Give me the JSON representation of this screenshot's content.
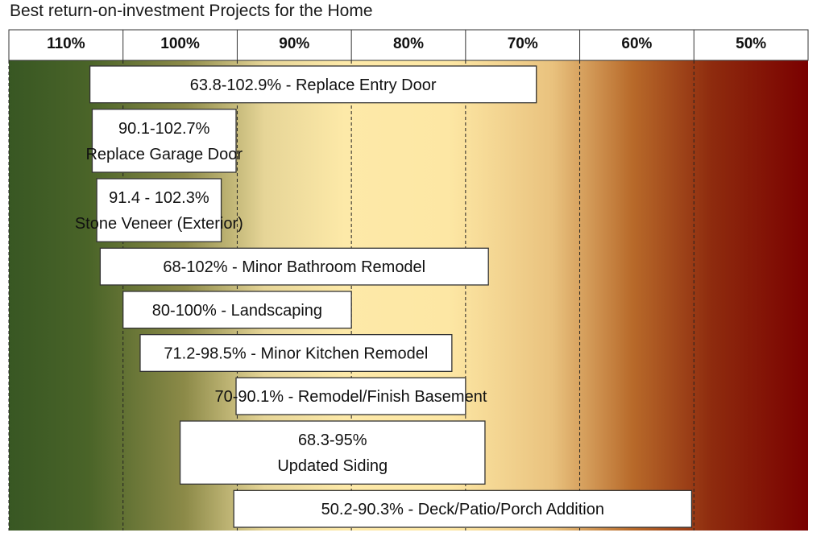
{
  "chart_data": {
    "type": "bar",
    "orientation": "horizontal-range",
    "title": "Best return-on-investment Projects for the Home",
    "xlim": [
      110,
      40
    ],
    "x_ticks": [
      110,
      100,
      90,
      80,
      70,
      60,
      50
    ],
    "tick_labels": [
      "110%",
      "100%",
      "90%",
      "80%",
      "70%",
      "60%",
      "50%"
    ],
    "grid": true,
    "background_gradient": [
      "#385723",
      "#fde9a8",
      "#7f0000"
    ],
    "bars": [
      {
        "lines": [
          "63.8-102.9% - Replace Entry Door"
        ],
        "low": 63.8,
        "high": 102.9
      },
      {
        "lines": [
          "90.1-102.7%",
          "Replace Garage Door"
        ],
        "low": 90.1,
        "high": 102.7
      },
      {
        "lines": [
          "91.4 - 102.3%",
          "Stone Veneer (Exterior)"
        ],
        "low": 91.4,
        "high": 102.3
      },
      {
        "lines": [
          "68-102% - Minor Bathroom Remodel"
        ],
        "low": 68,
        "high": 102
      },
      {
        "lines": [
          "80-100% - Landscaping"
        ],
        "low": 80,
        "high": 100
      },
      {
        "lines": [
          "71.2-98.5% - Minor Kitchen Remodel"
        ],
        "low": 71.2,
        "high": 98.5
      },
      {
        "lines": [
          "70-90.1% - Remodel/Finish Basement"
        ],
        "low": 70,
        "high": 90.1
      },
      {
        "lines": [
          "68.3-95%",
          "Updated Siding"
        ],
        "low": 68.3,
        "high": 95
      },
      {
        "lines": [
          "50.2-90.3% - Deck/Patio/Porch Addition"
        ],
        "low": 50.2,
        "high": 90.3
      }
    ]
  }
}
